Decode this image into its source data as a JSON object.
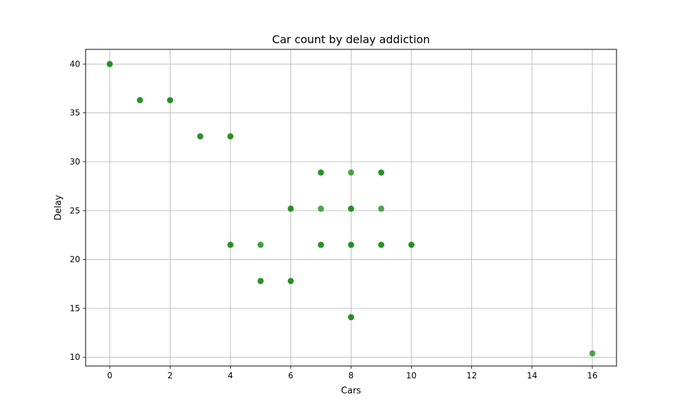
{
  "chart_data": {
    "type": "scatter",
    "title": "Car count by delay addiction",
    "xlabel": "Cars",
    "ylabel": "Delay",
    "xlim": [
      -0.8,
      16.8
    ],
    "ylim": [
      9.1,
      41.5
    ],
    "xticks": [
      0,
      2,
      4,
      6,
      8,
      10,
      12,
      14,
      16
    ],
    "yticks": [
      10,
      15,
      20,
      25,
      30,
      35,
      40
    ],
    "grid": true,
    "legend": "none",
    "marker_color": "#008000",
    "points": [
      {
        "x": 0,
        "y": 40.0,
        "opacity": 0.85
      },
      {
        "x": 1,
        "y": 36.3,
        "opacity": 0.85
      },
      {
        "x": 2,
        "y": 36.3,
        "opacity": 0.85
      },
      {
        "x": 3,
        "y": 32.6,
        "opacity": 0.85
      },
      {
        "x": 4,
        "y": 32.6,
        "opacity": 0.85
      },
      {
        "x": 7,
        "y": 28.9,
        "opacity": 0.85
      },
      {
        "x": 8,
        "y": 28.9,
        "opacity": 0.7
      },
      {
        "x": 9,
        "y": 28.9,
        "opacity": 0.85
      },
      {
        "x": 6,
        "y": 25.2,
        "opacity": 0.85
      },
      {
        "x": 7,
        "y": 25.2,
        "opacity": 0.7
      },
      {
        "x": 8,
        "y": 25.2,
        "opacity": 0.85
      },
      {
        "x": 9,
        "y": 25.2,
        "opacity": 0.7
      },
      {
        "x": 4,
        "y": 21.5,
        "opacity": 0.85
      },
      {
        "x": 5,
        "y": 21.5,
        "opacity": 0.75
      },
      {
        "x": 7,
        "y": 21.5,
        "opacity": 0.85
      },
      {
        "x": 8,
        "y": 21.5,
        "opacity": 0.85
      },
      {
        "x": 9,
        "y": 21.5,
        "opacity": 0.85
      },
      {
        "x": 10,
        "y": 21.5,
        "opacity": 0.85
      },
      {
        "x": 5,
        "y": 17.8,
        "opacity": 0.85
      },
      {
        "x": 6,
        "y": 17.8,
        "opacity": 0.85
      },
      {
        "x": 8,
        "y": 14.1,
        "opacity": 0.85
      },
      {
        "x": 16,
        "y": 10.4,
        "opacity": 0.7
      }
    ]
  }
}
